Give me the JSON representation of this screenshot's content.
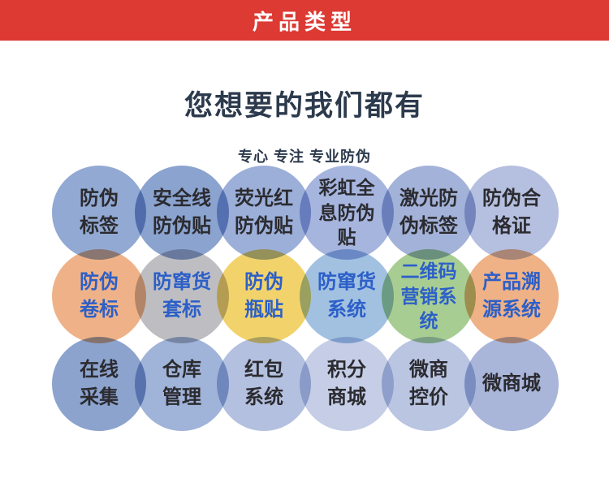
{
  "header": {
    "title": "产品类型",
    "bg": "#dc3a33",
    "fg": "#ffffff"
  },
  "intro": {
    "title": "您想要的我们都有",
    "subtitle": "专心 专注 专业防伪",
    "color": "#2c3a4d"
  },
  "grid": {
    "dark_text": "#2b2b30",
    "accent_text": "#2c5fc8",
    "items": [
      {
        "label": "防伪\n标签",
        "bg": "#92a9d3",
        "fg": "#2b2b30"
      },
      {
        "label": "安全线\n防伪贴",
        "bg": "#8ba3cf",
        "fg": "#2b2b30"
      },
      {
        "label": "荧光红\n防伪贴",
        "bg": "#9cafd9",
        "fg": "#2b2b30"
      },
      {
        "label": "彩虹全\n息防伪\n贴",
        "bg": "#a6b5de",
        "fg": "#2b2b30"
      },
      {
        "label": "激光防\n伪标签",
        "bg": "#a3b2d8",
        "fg": "#2b2b30"
      },
      {
        "label": "防伪合\n格证",
        "bg": "#b5bfdf",
        "fg": "#2b2b30"
      },
      {
        "label": "防伪\n卷标",
        "bg": "#efb288",
        "fg": "#2c5fc8"
      },
      {
        "label": "防窜货\n套标",
        "bg": "#bebec2",
        "fg": "#2c5fc8"
      },
      {
        "label": "防伪\n瓶贴",
        "bg": "#f2d36b",
        "fg": "#2c5fc8"
      },
      {
        "label": "防窜货\n系统",
        "bg": "#a2c1e1",
        "fg": "#2c5fc8"
      },
      {
        "label": "二维码\n营销系\n统",
        "bg": "#a8cd93",
        "fg": "#2c5fc8"
      },
      {
        "label": "产品溯\n源系统",
        "bg": "#efb186",
        "fg": "#2c5fc8"
      },
      {
        "label": "在线\n采集",
        "bg": "#8ca3ce",
        "fg": "#2b2b30"
      },
      {
        "label": "仓库\n管理",
        "bg": "#a0b3d8",
        "fg": "#2b2b30"
      },
      {
        "label": "红包\n系统",
        "bg": "#b3c0df",
        "fg": "#2b2b30"
      },
      {
        "label": "积分\n商城",
        "bg": "#c5cee6",
        "fg": "#2b2b30"
      },
      {
        "label": "微商\n控价",
        "bg": "#b9c5e1",
        "fg": "#2b2b30"
      },
      {
        "label": "微商城",
        "bg": "#a9b6da",
        "fg": "#2b2b30"
      }
    ]
  }
}
